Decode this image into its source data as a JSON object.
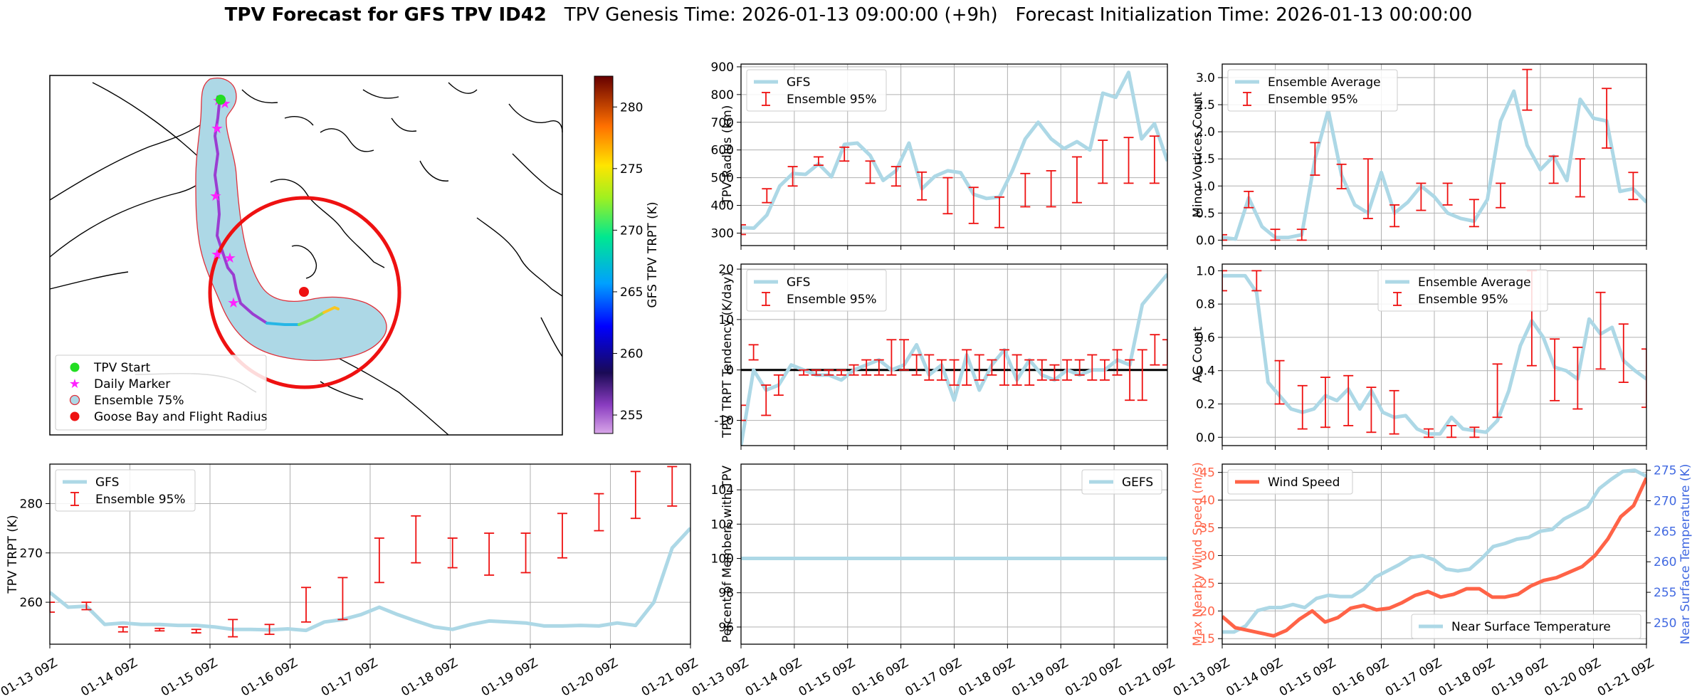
{
  "title": {
    "bold": "TPV Forecast for GFS TPV ID42",
    "genesis": "TPV Genesis Time: 2026-01-13 09:00:00 (+9h)",
    "init": "Forecast Initialization Time: 2026-01-13 00:00:00"
  },
  "map": {
    "legend": [
      "TPV Start",
      "Daily Marker",
      "Ensemble 75%",
      "Goose Bay and Flight Radius"
    ],
    "colorbar_label": "GFS TPV TRPT (K)",
    "colorbar_ticks": [
      "255",
      "260",
      "265",
      "270",
      "275",
      "280"
    ],
    "colorbar_range": [
      253.5,
      282.5
    ],
    "colors": {
      "ensemble_fill": "#add8e6",
      "ensemble_edge": "#e0303a",
      "radius": "#ee1111",
      "start": "#22dd22",
      "marker": "#ff22ff"
    }
  },
  "chart_data": [
    {
      "id": "radius",
      "type": "line",
      "ylabel": "TPV Radius (km)",
      "ylim": [
        255,
        910
      ],
      "yticks": [
        "300",
        "400",
        "500",
        "600",
        "700",
        "800",
        "900"
      ],
      "legend": [
        "GFS",
        "Ensemble 95%"
      ],
      "legend_position": "upper-left",
      "series_values": [
        320,
        318,
        365,
        470,
        515,
        512,
        550,
        503,
        620,
        625,
        580,
        490,
        525,
        625,
        460,
        505,
        525,
        518,
        440,
        425,
        430,
        525,
        640,
        700,
        640,
        605,
        630,
        600,
        805,
        790,
        880,
        640,
        695,
        560
      ],
      "error_bars": [
        [
          0,
          295,
          330
        ],
        [
          2,
          410,
          460
        ],
        [
          4,
          470,
          540
        ],
        [
          6,
          545,
          575
        ],
        [
          8,
          560,
          610
        ],
        [
          10,
          480,
          560
        ],
        [
          12,
          470,
          540
        ],
        [
          14,
          420,
          520
        ],
        [
          16,
          370,
          500
        ],
        [
          18,
          335,
          465
        ],
        [
          20,
          320,
          430
        ],
        [
          22,
          395,
          515
        ],
        [
          24,
          395,
          525
        ],
        [
          26,
          410,
          575
        ],
        [
          28,
          480,
          635
        ],
        [
          30,
          480,
          645
        ],
        [
          32,
          480,
          650
        ],
        [
          34,
          420,
          580
        ]
      ]
    },
    {
      "id": "tendency",
      "type": "line",
      "ylabel": "TPV TRPT Tendency (K/day)",
      "ylim": [
        -15,
        21
      ],
      "yticks": [
        "-10",
        "0",
        "10",
        "20"
      ],
      "legend": [
        "GFS",
        "Ensemble 95%"
      ],
      "legend_position": "upper-left",
      "series_values": [
        -15,
        0,
        -4,
        -3,
        1,
        0,
        -1,
        -1,
        -2,
        0,
        1,
        2,
        0,
        1,
        5,
        -1,
        1,
        -6,
        3,
        -4,
        1,
        4,
        -2,
        2,
        -1,
        -2,
        0,
        -1,
        0,
        0,
        2,
        1,
        13,
        16,
        19
      ],
      "error_bars": [
        [
          0,
          -10,
          -7
        ],
        [
          1,
          2,
          5
        ],
        [
          2,
          -9,
          -3
        ],
        [
          3,
          -5,
          -1
        ],
        [
          5,
          -1,
          0
        ],
        [
          6,
          -1,
          0
        ],
        [
          7,
          -1,
          0
        ],
        [
          8,
          -1,
          0
        ],
        [
          9,
          -1,
          1
        ],
        [
          10,
          -1,
          2
        ],
        [
          11,
          -1,
          2
        ],
        [
          12,
          -1,
          6
        ],
        [
          13,
          0,
          6
        ],
        [
          14,
          -1,
          3
        ],
        [
          15,
          -2,
          3
        ],
        [
          16,
          -2,
          2
        ],
        [
          17,
          -3,
          2
        ],
        [
          18,
          -3,
          4
        ],
        [
          19,
          -2,
          3
        ],
        [
          20,
          -1,
          2
        ],
        [
          21,
          -3,
          4
        ],
        [
          22,
          -3,
          3
        ],
        [
          23,
          -3,
          2
        ],
        [
          24,
          -2,
          2
        ],
        [
          25,
          -2,
          1
        ],
        [
          26,
          -2,
          2
        ],
        [
          27,
          -1,
          2
        ],
        [
          28,
          -2,
          3
        ],
        [
          29,
          -2,
          2
        ],
        [
          30,
          -1,
          4
        ],
        [
          31,
          -6,
          2
        ],
        [
          32,
          -6,
          4
        ],
        [
          33,
          1,
          7
        ],
        [
          34,
          1,
          6
        ]
      ],
      "zero_line": true
    },
    {
      "id": "minor",
      "type": "line",
      "ylabel": "Minor Vortices Count",
      "ylim": [
        -0.1,
        3.25
      ],
      "yticks": [
        "0.0",
        "0.5",
        "1.0",
        "1.5",
        "2.0",
        "2.5",
        "3.0"
      ],
      "legend": [
        "Ensemble Average",
        "Ensemble 95%"
      ],
      "legend_position": "upper-left",
      "series_values": [
        0.05,
        0.02,
        0.78,
        0.25,
        0.05,
        0.05,
        0.1,
        1.5,
        2.4,
        1.2,
        0.65,
        0.5,
        1.25,
        0.5,
        0.7,
        1.0,
        0.8,
        0.5,
        0.4,
        0.35,
        0.75,
        2.2,
        2.75,
        1.75,
        1.3,
        1.55,
        1.1,
        2.6,
        2.25,
        2.2,
        0.9,
        0.95,
        0.7
      ],
      "error_bars": [
        [
          0,
          0,
          0.1
        ],
        [
          2,
          0.6,
          0.9
        ],
        [
          4,
          0,
          0.2
        ],
        [
          6,
          0,
          0.2
        ],
        [
          7,
          1.2,
          1.8
        ],
        [
          9,
          0.95,
          1.4
        ],
        [
          11,
          0.4,
          1.5
        ],
        [
          13,
          0.25,
          0.65
        ],
        [
          15,
          0.55,
          1.05
        ],
        [
          17,
          0.65,
          1.05
        ],
        [
          19,
          0.25,
          0.75
        ],
        [
          21,
          0.6,
          1.05
        ],
        [
          23,
          2.4,
          3.15
        ],
        [
          25,
          1.05,
          1.55
        ],
        [
          27,
          0.8,
          1.5
        ],
        [
          29,
          1.7,
          2.8
        ],
        [
          31,
          0.75,
          1.25
        ],
        [
          33,
          0.35,
          0.95
        ]
      ]
    },
    {
      "id": "ac",
      "type": "line",
      "ylabel": "AC Count",
      "ylim": [
        -0.05,
        1.04
      ],
      "yticks": [
        "0.0",
        "0.2",
        "0.4",
        "0.6",
        "0.8",
        "1.0"
      ],
      "legend": [
        "Ensemble Average",
        "Ensemble 95%"
      ],
      "legend_position": "upper-center",
      "series_values": [
        0.97,
        0.97,
        0.97,
        0.87,
        0.33,
        0.25,
        0.17,
        0.15,
        0.17,
        0.25,
        0.22,
        0.29,
        0.17,
        0.28,
        0.15,
        0.12,
        0.13,
        0.05,
        0.02,
        0.02,
        0.12,
        0.05,
        0.04,
        0.03,
        0.1,
        0.28,
        0.55,
        0.7,
        0.6,
        0.42,
        0.4,
        0.35,
        0.71,
        0.62,
        0.66,
        0.46,
        0.4,
        0.35
      ],
      "error_bars": [
        [
          0,
          0.88,
          1
        ],
        [
          3,
          0.88,
          1
        ],
        [
          5,
          0.2,
          0.46
        ],
        [
          7,
          0.05,
          0.31
        ],
        [
          9,
          0.06,
          0.36
        ],
        [
          11,
          0.07,
          0.37
        ],
        [
          13,
          0.03,
          0.3
        ],
        [
          15,
          0.02,
          0.28
        ],
        [
          18,
          0,
          0.05
        ],
        [
          20,
          0,
          0.07
        ],
        [
          22,
          0,
          0.06
        ],
        [
          24,
          0.12,
          0.44
        ],
        [
          27,
          0.43,
          1
        ],
        [
          29,
          0.22,
          0.59
        ],
        [
          31,
          0.17,
          0.54
        ],
        [
          33,
          0.41,
          0.87
        ],
        [
          35,
          0.33,
          0.68
        ],
        [
          37,
          0.18,
          0.53
        ]
      ]
    },
    {
      "id": "trpt",
      "type": "line",
      "ylabel": "TPV TRPT (K)",
      "ylim": [
        251.5,
        288
      ],
      "yticks": [
        "260",
        "270",
        "280"
      ],
      "legend": [
        "GFS",
        "Ensemble 95%"
      ],
      "legend_position": "upper-left",
      "series_values": [
        262,
        259,
        259.2,
        255.5,
        255.8,
        255.5,
        255.5,
        255.3,
        255.3,
        255,
        254.5,
        254.5,
        254.4,
        254.6,
        254.3,
        256,
        256.5,
        257.5,
        259,
        257.5,
        256.2,
        255,
        254.5,
        255.5,
        256.2,
        256,
        255.8,
        255.2,
        255.2,
        255.3,
        255.2,
        255.8,
        255.3,
        260,
        271,
        275
      ],
      "error_bars": [
        [
          0,
          258,
          260
        ],
        [
          2,
          258.5,
          260
        ],
        [
          4,
          254,
          255
        ],
        [
          6,
          254.2,
          254.7
        ],
        [
          8,
          253.8,
          254.5
        ],
        [
          10,
          253,
          256.5
        ],
        [
          12,
          253.5,
          255.5
        ],
        [
          14,
          256,
          263
        ],
        [
          16,
          256.5,
          265
        ],
        [
          18,
          264,
          273
        ],
        [
          20,
          268,
          277.5
        ],
        [
          22,
          267,
          273
        ],
        [
          24,
          265.5,
          274
        ],
        [
          26,
          266,
          274
        ],
        [
          28,
          269,
          278
        ],
        [
          30,
          274.5,
          282
        ],
        [
          32,
          277,
          286.5
        ],
        [
          34,
          279.5,
          287.5
        ]
      ]
    },
    {
      "id": "percent",
      "type": "line",
      "ylabel": "Percent of Members with TPV",
      "ylim": [
        95,
        105.5
      ],
      "yticks": [
        "96",
        "98",
        "100",
        "102",
        "104"
      ],
      "legend": [
        "GEFS"
      ],
      "legend_position": "upper-right",
      "series_values": [
        100,
        100
      ]
    },
    {
      "id": "wind",
      "type": "line",
      "ylabel": "Max Nearby Wind Speed (m/s)",
      "ylim": [
        14,
        46.5
      ],
      "yticks": [
        "15",
        "20",
        "25",
        "30",
        "35",
        "40",
        "45"
      ],
      "legend": [
        "Wind Speed"
      ],
      "legend_position": "upper-left",
      "series_values": [
        19,
        17,
        16.5,
        16,
        15.5,
        16.5,
        18.5,
        20,
        18,
        18.8,
        20.5,
        21,
        20.2,
        20.5,
        21.5,
        22.8,
        23.5,
        22.5,
        23,
        24,
        24,
        22.5,
        22.5,
        23,
        24.5,
        25.5,
        26,
        27,
        28,
        30,
        33,
        37,
        39,
        44
      ],
      "right_axis": {
        "ylabel": "Near Surface Temperature (K)",
        "ylim": [
          246.5,
          276
        ],
        "yticks": [
          "250",
          "255",
          "260",
          "265",
          "270",
          "275"
        ],
        "legend": [
          "Near Surface Temperature"
        ],
        "legend_position": "lower-right",
        "series_values": [
          248.5,
          248.5,
          249.5,
          252,
          252.5,
          252.5,
          253,
          252.5,
          254,
          254.5,
          254.3,
          254.3,
          255.5,
          257.5,
          258.5,
          259.5,
          260.7,
          261,
          260.3,
          258.8,
          258.5,
          258.8,
          260.5,
          262.5,
          263,
          263.7,
          264,
          265,
          265.3,
          267,
          268,
          269,
          272,
          273.5,
          274.8,
          275,
          274
        ]
      }
    }
  ],
  "xticks": [
    "01-13 09Z",
    "01-14 09Z",
    "01-15 09Z",
    "01-16 09Z",
    "01-17 09Z",
    "01-18 09Z",
    "01-19 09Z",
    "01-20 09Z",
    "01-21 09Z"
  ],
  "colors": {
    "line": "#add8e6",
    "err": "#ee1111",
    "wind": "#ff6347",
    "temp_axis": "#4169e1",
    "grid": "#b0b0b0"
  }
}
